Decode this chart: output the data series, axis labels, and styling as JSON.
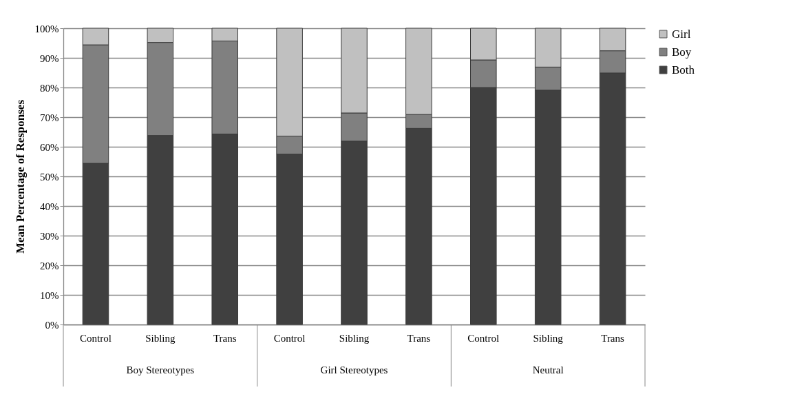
{
  "chart_data": {
    "type": "bar",
    "stacked": true,
    "ylabel": "Mean Percentage of Responses",
    "categories": [
      "Control",
      "Sibling",
      "Trans",
      "Control",
      "Sibling",
      "Trans",
      "Control",
      "Sibling",
      "Trans"
    ],
    "annotations": [
      "Boy Stereotypes",
      "Girl Stereotypes",
      "Neutral"
    ],
    "series": [
      {
        "name": "Both",
        "color": "#404040",
        "values": [
          54.4,
          63.8,
          64.3,
          57.5,
          61.9,
          66.2,
          80.0,
          79.1,
          84.9
        ]
      },
      {
        "name": "Boy",
        "color": "#808080",
        "values": [
          40.0,
          31.4,
          31.4,
          6.1,
          9.5,
          4.7,
          9.3,
          7.8,
          7.5
        ]
      },
      {
        "name": "Girl",
        "color": "#c0c0c0",
        "values": [
          5.6,
          4.8,
          4.3,
          36.4,
          28.6,
          29.1,
          10.7,
          13.1,
          7.6
        ]
      }
    ],
    "ylim": [
      0,
      100
    ],
    "yticks": [
      {
        "value": 0,
        "label": "0%"
      },
      {
        "value": 10,
        "label": "10%"
      },
      {
        "value": 20,
        "label": "20%"
      },
      {
        "value": 30,
        "label": "30%"
      },
      {
        "value": 40,
        "label": "40%"
      },
      {
        "value": 50,
        "label": "50%"
      },
      {
        "value": 60,
        "label": "60%"
      },
      {
        "value": 70,
        "label": "70%"
      },
      {
        "value": 80,
        "label": "80%"
      },
      {
        "value": 90,
        "label": "90%"
      },
      {
        "value": 100,
        "label": "100%"
      }
    ],
    "grid": "y",
    "legend": "right"
  }
}
